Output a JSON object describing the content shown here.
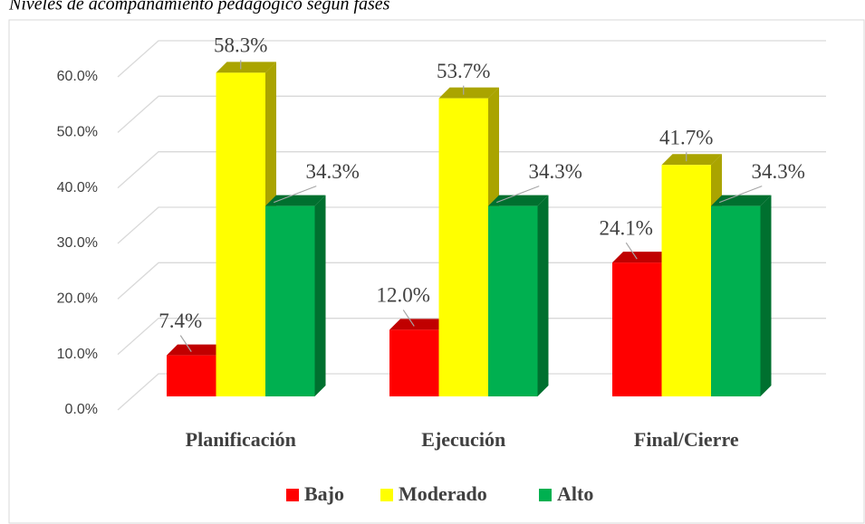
{
  "chart_data": {
    "type": "bar3d",
    "title": "Niveles de acompañamiento pedagógico según fases",
    "categories": [
      "Planificación",
      "Ejecución",
      "Final/Cierre"
    ],
    "series": [
      {
        "name": "Bajo",
        "color": "#ff0000",
        "side_color": "#c00000",
        "values": [
          7.4,
          12.0,
          24.1
        ],
        "value_labels": [
          "7.4%",
          "12.0%",
          "24.1%"
        ]
      },
      {
        "name": "Moderado",
        "color": "#ffff00",
        "side_color": "#aaa400",
        "values": [
          58.3,
          53.7,
          41.7
        ],
        "value_labels": [
          "58.3%",
          "53.7%",
          "41.7%"
        ]
      },
      {
        "name": "Alto",
        "color": "#00b050",
        "side_color": "#00702f",
        "values": [
          34.3,
          34.3,
          34.3
        ],
        "value_labels": [
          "34.3%",
          "34.3%",
          "34.3%"
        ]
      }
    ],
    "ylim": [
      0,
      60
    ],
    "yticks": [
      {
        "value": 0,
        "label": "0.0%"
      },
      {
        "value": 10,
        "label": "10.0%"
      },
      {
        "value": 20,
        "label": "20.0%"
      },
      {
        "value": 30,
        "label": "30.0%"
      },
      {
        "value": 40,
        "label": "40.0%"
      },
      {
        "value": 50,
        "label": "50.0%"
      },
      {
        "value": 60,
        "label": "60.0%"
      }
    ],
    "grid": true,
    "legend": "bottom"
  }
}
